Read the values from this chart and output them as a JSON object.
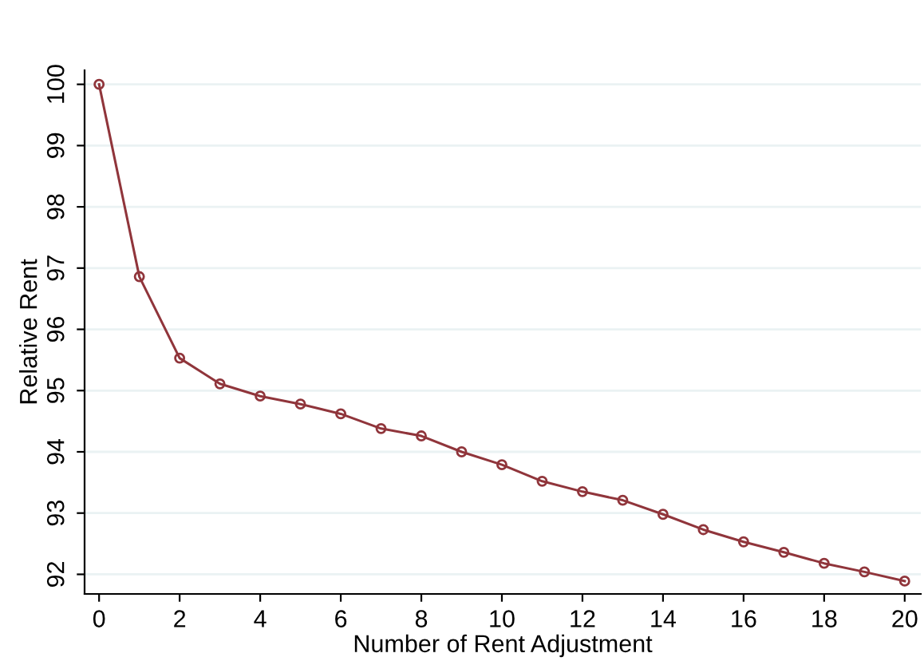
{
  "chart_data": {
    "type": "line",
    "xlabel": "Number of Rent Adjustment",
    "ylabel": "Relative Rent",
    "x": [
      0,
      1,
      2,
      3,
      4,
      5,
      6,
      7,
      8,
      9,
      10,
      11,
      12,
      13,
      14,
      15,
      16,
      17,
      18,
      19,
      20
    ],
    "series": [
      {
        "color": "#90353b",
        "values": [
          100,
          96.86,
          95.53,
          95.11,
          94.91,
          94.78,
          94.62,
          94.38,
          94.26,
          94.0,
          93.79,
          93.52,
          93.35,
          93.21,
          92.98,
          92.73,
          92.53,
          92.36,
          92.18,
          92.04,
          91.89
        ]
      }
    ],
    "xlim": [
      -0.36,
      20.4
    ],
    "ylim": [
      91.68,
      100.23
    ],
    "xticks": [
      0,
      2,
      4,
      6,
      8,
      10,
      12,
      14,
      16,
      18,
      20
    ],
    "yticks": [
      92,
      93,
      94,
      95,
      96,
      97,
      98,
      99,
      100
    ],
    "grid": "y",
    "marker": "circle",
    "line_style": "solid",
    "legend": false
  }
}
